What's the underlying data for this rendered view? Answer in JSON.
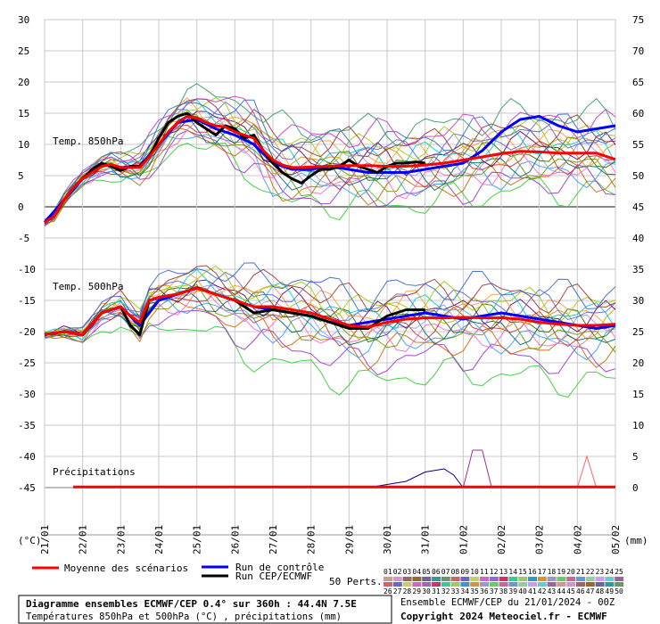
{
  "chart_data": {
    "type": "line",
    "x_ticks": [
      "21/01",
      "22/01",
      "23/01",
      "24/01",
      "25/01",
      "26/01",
      "27/01",
      "28/01",
      "29/01",
      "30/01",
      "31/01",
      "01/02",
      "02/02",
      "03/02",
      "04/02",
      "05/02"
    ],
    "y_left_ticks": [
      30,
      25,
      20,
      15,
      10,
      5,
      0,
      -5,
      -10,
      -15,
      -20,
      -25,
      -30,
      -35,
      -40,
      -45
    ],
    "y_right_ticks": [
      75,
      70,
      65,
      60,
      55,
      50,
      45,
      40,
      35,
      30,
      25,
      20,
      15,
      10,
      5,
      0
    ],
    "y_left_unit": "(°C)",
    "y_right_unit": "(mm)",
    "panels": {
      "t850": "Temp. 850hPa",
      "t500": "Temp. 500hPa",
      "precip": "Précipitations"
    },
    "series": [
      {
        "name": "Moyenne des scénarios",
        "role": "mean_t850",
        "color": "#ff0000",
        "x": [
          0,
          0.25,
          0.5,
          0.75,
          1,
          1.25,
          1.5,
          1.75,
          2,
          2.25,
          2.5,
          2.75,
          3,
          3.25,
          3.5,
          3.75,
          4,
          4.25,
          4.5,
          4.75,
          5,
          5.25,
          5.5,
          5.75,
          6,
          6.25,
          6.5,
          6.75,
          7,
          7.5,
          8,
          8.5,
          9,
          9.5,
          10,
          10.5,
          11,
          11.5,
          12,
          12.5,
          13,
          13.5,
          14,
          14.5,
          15
        ],
        "values": [
          -2.5,
          -1.5,
          1,
          3,
          4.5,
          5.5,
          6.5,
          6.8,
          6.3,
          6.3,
          6.3,
          8,
          10,
          12,
          13.5,
          14.5,
          14.2,
          13.5,
          13,
          12.8,
          12,
          11.5,
          11,
          9,
          7.5,
          6.7,
          6.3,
          6.3,
          6.4,
          6.5,
          6.6,
          6.6,
          6.5,
          6.5,
          6.7,
          7,
          7.5,
          8,
          8.5,
          8.9,
          8.8,
          8.6,
          8.6,
          8.6,
          7.6
        ]
      },
      {
        "name": "Run CEP/ECMWF",
        "role": "hres_t850",
        "color": "#000000",
        "x": [
          0,
          0.25,
          0.5,
          0.75,
          1,
          1.25,
          1.5,
          1.75,
          2,
          2.25,
          2.5,
          2.75,
          3,
          3.25,
          3.5,
          3.75,
          4,
          4.25,
          4.5,
          4.75,
          5,
          5.25,
          5.5,
          5.75,
          6,
          6.25,
          6.5,
          6.75,
          7,
          7.25,
          7.5,
          7.75,
          8,
          8.25,
          8.5,
          8.75,
          9,
          9.25,
          9.5,
          9.75,
          10
        ],
        "values": [
          -2.5,
          -1.5,
          1,
          3,
          4.5,
          6,
          7,
          6.5,
          5.8,
          6.5,
          6.5,
          8,
          11,
          13.5,
          14.5,
          15,
          13.5,
          12.5,
          11.5,
          13,
          12.5,
          11,
          11.5,
          9,
          7,
          5.5,
          4.5,
          3.8,
          5,
          6,
          6,
          6.5,
          7.5,
          6.5,
          6,
          5.5,
          6.5,
          7,
          7,
          7.2,
          7
        ]
      },
      {
        "name": "Run de contrôle",
        "role": "ctrl_t850",
        "color": "#0000ff",
        "x": [
          0,
          0.5,
          1,
          1.5,
          2,
          2.5,
          3,
          3.5,
          4,
          4.5,
          5,
          5.5,
          6,
          6.5,
          7,
          7.5,
          8,
          8.5,
          9,
          9.5,
          10,
          10.5,
          11,
          11.5,
          12,
          12.5,
          13,
          13.5,
          14,
          14.5,
          15
        ],
        "values": [
          -2.5,
          1,
          4.5,
          6.8,
          6.3,
          6.5,
          10,
          13.5,
          14,
          12.5,
          11.5,
          10,
          7,
          6,
          6,
          6.5,
          6,
          5.5,
          5.5,
          5.5,
          6,
          6.5,
          7,
          9,
          12,
          14,
          14.5,
          13,
          12,
          12.5,
          13
        ]
      },
      {
        "name": "Moyenne des scénarios",
        "role": "mean_t500",
        "color": "#ff0000",
        "x": [
          0,
          0.5,
          1,
          1.5,
          2,
          2.25,
          2.5,
          2.75,
          3,
          3.5,
          4,
          4.5,
          5,
          5.5,
          6,
          6.5,
          7,
          7.5,
          8,
          8.5,
          9,
          9.5,
          10,
          10.5,
          11,
          11.5,
          12,
          12.5,
          13,
          13.5,
          14,
          14.5,
          15
        ],
        "values": [
          -20.5,
          -20,
          -20.5,
          -17,
          -16,
          -17.5,
          -18.5,
          -15,
          -14.5,
          -14,
          -13,
          -14,
          -15,
          -16,
          -16,
          -16.5,
          -17,
          -18,
          -19,
          -19.3,
          -18.5,
          -18,
          -17.8,
          -17.8,
          -17.7,
          -17.8,
          -17.8,
          -18,
          -18.5,
          -18.8,
          -19,
          -19,
          -18.8
        ]
      },
      {
        "name": "Run CEP/ECMWF",
        "role": "hres_t500",
        "color": "#000000",
        "x": [
          0,
          0.5,
          1,
          1.5,
          2,
          2.25,
          2.5,
          2.75,
          3,
          3.5,
          4,
          4.5,
          5,
          5.5,
          6,
          6.5,
          7,
          7.5,
          8,
          8.5,
          9,
          9.5,
          10
        ],
        "values": [
          -20.5,
          -20,
          -20.5,
          -17,
          -16,
          -19,
          -20.5,
          -15,
          -14.5,
          -14,
          -13,
          -14,
          -15,
          -17,
          -16.5,
          -17,
          -17.5,
          -18.5,
          -19.5,
          -19.5,
          -17.5,
          -16.5,
          -16.5
        ]
      },
      {
        "name": "Run de contrôle",
        "role": "ctrl_t500",
        "color": "#0000ff",
        "x": [
          0,
          0.5,
          1,
          1.5,
          2,
          2.5,
          3,
          3.5,
          4,
          4.5,
          5,
          5.5,
          6,
          6.5,
          7,
          7.5,
          8,
          8.5,
          9,
          9.5,
          10,
          10.5,
          11,
          11.5,
          12,
          12.5,
          13,
          13.5,
          14,
          14.5,
          15
        ],
        "values": [
          -20.5,
          -20,
          -20.5,
          -17,
          -16,
          -19,
          -15,
          -14,
          -13,
          -14,
          -15,
          -16,
          -16.5,
          -17,
          -17.5,
          -18.5,
          -19,
          -18.5,
          -18,
          -17.5,
          -17,
          -17.5,
          -18,
          -17.5,
          -17,
          -17.5,
          -18,
          -18.5,
          -19,
          -19.5,
          -19
        ]
      }
    ],
    "precip_mean_value_mm": 0.1,
    "precip_highlights": [
      {
        "x": [
          8.5,
          9,
          9.5,
          10,
          10.5,
          10.75,
          11
        ],
        "values": [
          0,
          0.5,
          1,
          2.5,
          3,
          2,
          0
        ],
        "color": "#000080"
      },
      {
        "x": [
          11,
          11.25,
          11.5,
          11.75,
          12
        ],
        "values": [
          0,
          6,
          6,
          0,
          0
        ],
        "color": "#993399"
      },
      {
        "x": [
          14,
          14.25,
          14.5,
          14.75
        ],
        "values": [
          0,
          5,
          0,
          0
        ],
        "color": "#ff6666"
      }
    ],
    "t850_member_offsets": [
      -6,
      -4.5,
      -3.5,
      -3,
      -2.5,
      -2,
      -1.5,
      -1,
      -0.5,
      0,
      0.5,
      1,
      1.5,
      2,
      2.5,
      3,
      3.5,
      4,
      5,
      6
    ],
    "t500_member_offsets": [
      -9,
      -6,
      -4,
      -3,
      -2.5,
      -2,
      -1.5,
      -1,
      -0.5,
      0,
      0.5,
      1,
      1.5,
      2,
      2.5,
      3,
      4,
      5
    ],
    "member_colors": [
      "#33cc33",
      "#9933cc",
      "#cc6600",
      "#3399ff",
      "#ff66cc",
      "#669900",
      "#006666",
      "#cc3333",
      "#9999ff",
      "#336600",
      "#cc9900",
      "#660066",
      "#00cccc",
      "#ff9933",
      "#6666cc",
      "#99cc00",
      "#993333",
      "#3366cc",
      "#cc33cc",
      "#339966"
    ]
  },
  "legend": {
    "mean_label": "Moyenne des scénarios",
    "ctrl_label": "Run de contrôle",
    "hres_label": "Run CEP/ECMWF",
    "perts_label": "50 Perts.",
    "perts_row1": [
      "01",
      "02",
      "03",
      "04",
      "05",
      "06",
      "07",
      "08",
      "09",
      "10",
      "11",
      "12",
      "13",
      "14",
      "15",
      "16",
      "17",
      "18",
      "19",
      "20",
      "21",
      "22",
      "23",
      "24",
      "25"
    ],
    "perts_row2": [
      "26",
      "27",
      "28",
      "29",
      "30",
      "31",
      "32",
      "33",
      "34",
      "35",
      "36",
      "37",
      "38",
      "39",
      "40",
      "41",
      "42",
      "43",
      "44",
      "45",
      "46",
      "47",
      "48",
      "49",
      "50"
    ],
    "swatch_colors": [
      "#cc9999",
      "#cc99cc",
      "#996666",
      "#996633",
      "#666699",
      "#339999",
      "#669966",
      "#cc6666",
      "#6666cc",
      "#cccc66",
      "#cc66cc",
      "#9966cc",
      "#cc3366",
      "#33cc99",
      "#99cc66",
      "#3399cc",
      "#cc9933",
      "#9999cc",
      "#66cc66",
      "#cc6699",
      "#6699cc",
      "#99cc99",
      "#cc99ff",
      "#66cccc",
      "#996699"
    ]
  },
  "footer": {
    "title": "Diagramme ensembles ECMWF/CEP 0.4° sur 360h : 44.4N 7.5E",
    "subtitle": "Températures 850hPa et 500hPa (°C) , précipitations (mm)",
    "ensemble_info": "Ensemble ECMWF/CEP du 21/01/2024 - 00Z",
    "copyright": "Copyright 2024 Meteociel.fr - ECMWF"
  }
}
